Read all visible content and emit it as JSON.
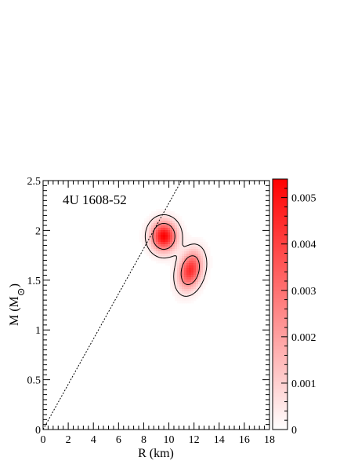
{
  "chart_data": {
    "type": "heatmap",
    "annotation": "4U 1608-52",
    "xlabel": "R (km)",
    "ylabel_main": "M (M",
    "ylabel_sub": "⊙",
    "ylabel_close": ")",
    "xlim": [
      0,
      18
    ],
    "ylim": [
      0,
      2.5
    ],
    "xticks": [
      0,
      2,
      4,
      6,
      8,
      10,
      12,
      14,
      16,
      18
    ],
    "yticks": [
      0,
      0.5,
      1,
      1.5,
      2,
      2.5
    ],
    "xtick_labels": [
      "0",
      "2",
      "4",
      "6",
      "8",
      "10",
      "12",
      "14",
      "16",
      "18"
    ],
    "ytick_labels": [
      "0",
      "0.5",
      "1",
      "1.5",
      "2",
      "2.5"
    ],
    "colorbar": {
      "range": [
        0,
        0.0054
      ],
      "ticks": [
        0,
        0.001,
        0.002,
        0.003,
        0.004,
        0.005
      ],
      "tick_labels": [
        "0",
        "0.001",
        "0.002",
        "0.003",
        "0.004",
        "0.005"
      ],
      "color_low": "#ffffff",
      "color_high": "#ff0000"
    },
    "blobs": [
      {
        "center_R": 9.6,
        "center_M": 1.94,
        "peak": 0.0054
      },
      {
        "center_R": 11.7,
        "center_M": 1.6,
        "peak": 0.0045
      }
    ],
    "limit_line": {
      "style": "dashed",
      "points": [
        [
          0,
          0
        ],
        [
          11,
          2.5
        ]
      ]
    }
  }
}
